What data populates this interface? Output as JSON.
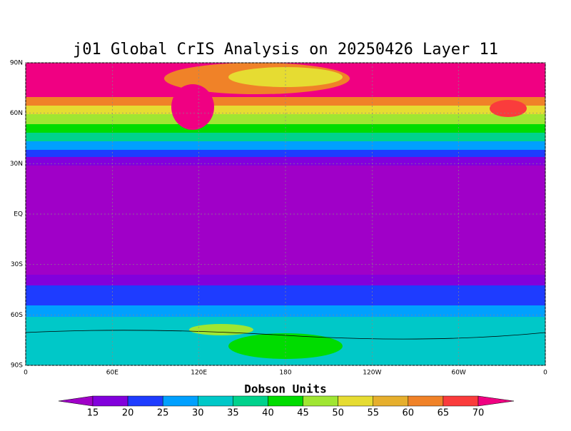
{
  "title": "j01 Global CrIS Analysis on 20250426 Layer 11",
  "map": {
    "latlim": [
      -90,
      90
    ],
    "lonlim": [
      0,
      360
    ],
    "lat_ticks": [
      {
        "value": -90,
        "label": "90S"
      },
      {
        "value": -60,
        "label": "60S"
      },
      {
        "value": -30,
        "label": "30S"
      },
      {
        "value": 0,
        "label": "EQ"
      },
      {
        "value": 30,
        "label": "30N"
      },
      {
        "value": 60,
        "label": "60N"
      },
      {
        "value": 90,
        "label": "90N"
      }
    ],
    "lon_ticks": [
      0,
      {
        "value": 60,
        "label": "60E"
      },
      {
        "value": 120,
        "label": "120E"
      },
      180,
      {
        "value": 240,
        "label": "120W"
      },
      {
        "value": 300,
        "label": "60W"
      },
      {
        "value": 360,
        "label": "0"
      }
    ],
    "grid": true
  },
  "colorbar": {
    "title": "Dobson Units",
    "levels": [
      15,
      20,
      25,
      30,
      35,
      40,
      45,
      50,
      55,
      60,
      65,
      70
    ],
    "colors": [
      "#a000c8",
      "#8200dc",
      "#1e3cff",
      "#00a0ff",
      "#00c8c8",
      "#00d28c",
      "#00dc00",
      "#a0e632",
      "#e6dc32",
      "#e6af2d",
      "#f08228",
      "#fa3c3c",
      "#f00082"
    ]
  }
}
